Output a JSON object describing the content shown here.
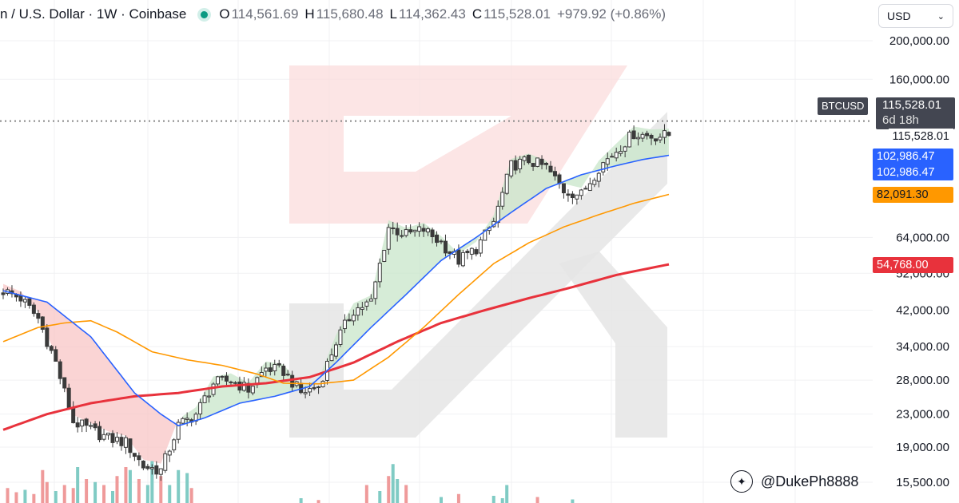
{
  "header": {
    "symbol_title": "n / U.S. Dollar · 1W · Coinbase",
    "open_label": "O",
    "open": "114,561.69",
    "high_label": "H",
    "high": "115,680.48",
    "low_label": "L",
    "low": "114,362.43",
    "close_label": "C",
    "close": "115,528.01",
    "change": "+979.92 (+0.86%)"
  },
  "currency_select": {
    "value": "USD"
  },
  "price_labels": {
    "ticker": "BTCUSD",
    "last_price": "115,528.01",
    "countdown": "6d 18h",
    "price_line_label": "115,528.01",
    "ma_blue_1": "102,986.47",
    "ma_blue_2": "102,986.47",
    "ma_orange": "82,091.30",
    "ma_red": "54,768.00"
  },
  "watermark": {
    "handle": "@DukePh8888",
    "icon": "twitter-bird-icon"
  },
  "colors": {
    "up": "#2f2f2f",
    "down": "#2f2f2f",
    "ma_fast": "#2962ff",
    "ma_mid": "#ff9800",
    "ma_slow": "#e8323c",
    "fill_up": "#c8e6c9",
    "fill_down": "#f8c5c5",
    "vol_up": "#80cbc4",
    "vol_down": "#ef9a9a",
    "logo": "#e5e5e5",
    "logo_accent": "#fbdcdc"
  },
  "chart_data": {
    "type": "candlestick",
    "timeframe": "1W",
    "y_scale": "log",
    "ylim": [
      15000,
      230000
    ],
    "y_ticks": [
      {
        "value": 200000,
        "label": "200,000.00"
      },
      {
        "value": 160000,
        "label": "160,000.00"
      },
      {
        "value": 64000,
        "label": "64,000.00"
      },
      {
        "value": 52000,
        "label": "52,000.00"
      },
      {
        "value": 42000,
        "label": "42,000.00"
      },
      {
        "value": 34000,
        "label": "34,000.00"
      },
      {
        "value": 28000,
        "label": "28,000.00"
      },
      {
        "value": 23000,
        "label": "23,000.00"
      },
      {
        "value": 19000,
        "label": "19,000.00"
      },
      {
        "value": 15500,
        "label": "15,500.00"
      }
    ],
    "last_close": 115528.01,
    "ohlc_anchor_closes": [
      [
        0,
        47000
      ],
      [
        4,
        45000
      ],
      [
        8,
        40000
      ],
      [
        12,
        31000
      ],
      [
        16,
        22000
      ],
      [
        20,
        21000
      ],
      [
        24,
        20000
      ],
      [
        28,
        19500
      ],
      [
        32,
        17000
      ],
      [
        36,
        16600
      ],
      [
        40,
        21500
      ],
      [
        44,
        23000
      ],
      [
        48,
        27500
      ],
      [
        52,
        28000
      ],
      [
        56,
        26500
      ],
      [
        60,
        30000
      ],
      [
        64,
        29500
      ],
      [
        68,
        26000
      ],
      [
        72,
        27000
      ],
      [
        76,
        35000
      ],
      [
        80,
        42000
      ],
      [
        84,
        44000
      ],
      [
        88,
        68000
      ],
      [
        92,
        65000
      ],
      [
        96,
        67000
      ],
      [
        100,
        62000
      ],
      [
        104,
        56000
      ],
      [
        108,
        60000
      ],
      [
        112,
        70000
      ],
      [
        116,
        97000
      ],
      [
        120,
        100000
      ],
      [
        124,
        96000
      ],
      [
        128,
        84000
      ],
      [
        132,
        82000
      ],
      [
        136,
        96000
      ],
      [
        140,
        106000
      ],
      [
        144,
        117000
      ],
      [
        148,
        115000
      ],
      [
        152,
        115528
      ]
    ],
    "ma_fast": [
      [
        0,
        47000
      ],
      [
        10,
        44000
      ],
      [
        20,
        36000
      ],
      [
        30,
        26000
      ],
      [
        36,
        23000
      ],
      [
        40,
        21500
      ],
      [
        46,
        22500
      ],
      [
        54,
        24500
      ],
      [
        62,
        25500
      ],
      [
        70,
        27000
      ],
      [
        76,
        31000
      ],
      [
        84,
        38000
      ],
      [
        92,
        46000
      ],
      [
        100,
        56000
      ],
      [
        108,
        64000
      ],
      [
        116,
        74000
      ],
      [
        124,
        85000
      ],
      [
        132,
        92000
      ],
      [
        140,
        97000
      ],
      [
        146,
        100500
      ],
      [
        152,
        102986
      ]
    ],
    "ma_mid": [
      [
        0,
        35000
      ],
      [
        8,
        38000
      ],
      [
        14,
        39000
      ],
      [
        20,
        39500
      ],
      [
        26,
        37000
      ],
      [
        34,
        33000
      ],
      [
        42,
        31500
      ],
      [
        50,
        30500
      ],
      [
        58,
        29000
      ],
      [
        64,
        27500
      ],
      [
        72,
        27400
      ],
      [
        80,
        28000
      ],
      [
        88,
        32000
      ],
      [
        96,
        38000
      ],
      [
        104,
        46000
      ],
      [
        112,
        55000
      ],
      [
        120,
        62000
      ],
      [
        128,
        68000
      ],
      [
        136,
        73000
      ],
      [
        144,
        78000
      ],
      [
        152,
        82091
      ]
    ],
    "ma_slow": [
      [
        0,
        21000
      ],
      [
        10,
        23000
      ],
      [
        20,
        24500
      ],
      [
        30,
        25500
      ],
      [
        40,
        26000
      ],
      [
        50,
        27000
      ],
      [
        60,
        27500
      ],
      [
        70,
        28500
      ],
      [
        80,
        31000
      ],
      [
        90,
        35000
      ],
      [
        100,
        39000
      ],
      [
        110,
        42000
      ],
      [
        120,
        45000
      ],
      [
        130,
        48000
      ],
      [
        140,
        51500
      ],
      [
        152,
        54768
      ]
    ],
    "volume_bars": [
      [
        1,
        0.25,
        "d"
      ],
      [
        3,
        0.18,
        "d"
      ],
      [
        5,
        0.22,
        "u"
      ],
      [
        7,
        0.15,
        "d"
      ],
      [
        9,
        0.55,
        "d"
      ],
      [
        10,
        0.35,
        "d"
      ],
      [
        12,
        0.2,
        "u"
      ],
      [
        14,
        0.3,
        "d"
      ],
      [
        16,
        0.25,
        "d"
      ],
      [
        17,
        0.6,
        "u"
      ],
      [
        19,
        0.4,
        "d"
      ],
      [
        21,
        0.35,
        "u"
      ],
      [
        23,
        0.3,
        "d"
      ],
      [
        25,
        0.2,
        "u"
      ],
      [
        26,
        0.45,
        "d"
      ],
      [
        28,
        0.6,
        "d"
      ],
      [
        29,
        0.55,
        "u"
      ],
      [
        31,
        0.4,
        "d"
      ],
      [
        33,
        0.3,
        "u"
      ],
      [
        34,
        0.7,
        "u"
      ],
      [
        36,
        0.45,
        "d"
      ],
      [
        38,
        0.3,
        "u"
      ],
      [
        40,
        0.55,
        "u"
      ],
      [
        42,
        0.5,
        "u"
      ],
      [
        43,
        0.25,
        "d"
      ],
      [
        68,
        0.08,
        "u"
      ],
      [
        72,
        0.05,
        "d"
      ],
      [
        83,
        0.3,
        "d"
      ],
      [
        86,
        0.2,
        "u"
      ],
      [
        88,
        0.45,
        "d"
      ],
      [
        89,
        0.65,
        "u"
      ],
      [
        90,
        0.4,
        "u"
      ],
      [
        92,
        0.3,
        "d"
      ],
      [
        100,
        0.1,
        "u"
      ],
      [
        104,
        0.15,
        "d"
      ],
      [
        112,
        0.12,
        "u"
      ],
      [
        114,
        0.08,
        "u"
      ],
      [
        115,
        0.3,
        "u"
      ],
      [
        122,
        0.1,
        "d"
      ],
      [
        130,
        0.06,
        "u"
      ]
    ]
  }
}
